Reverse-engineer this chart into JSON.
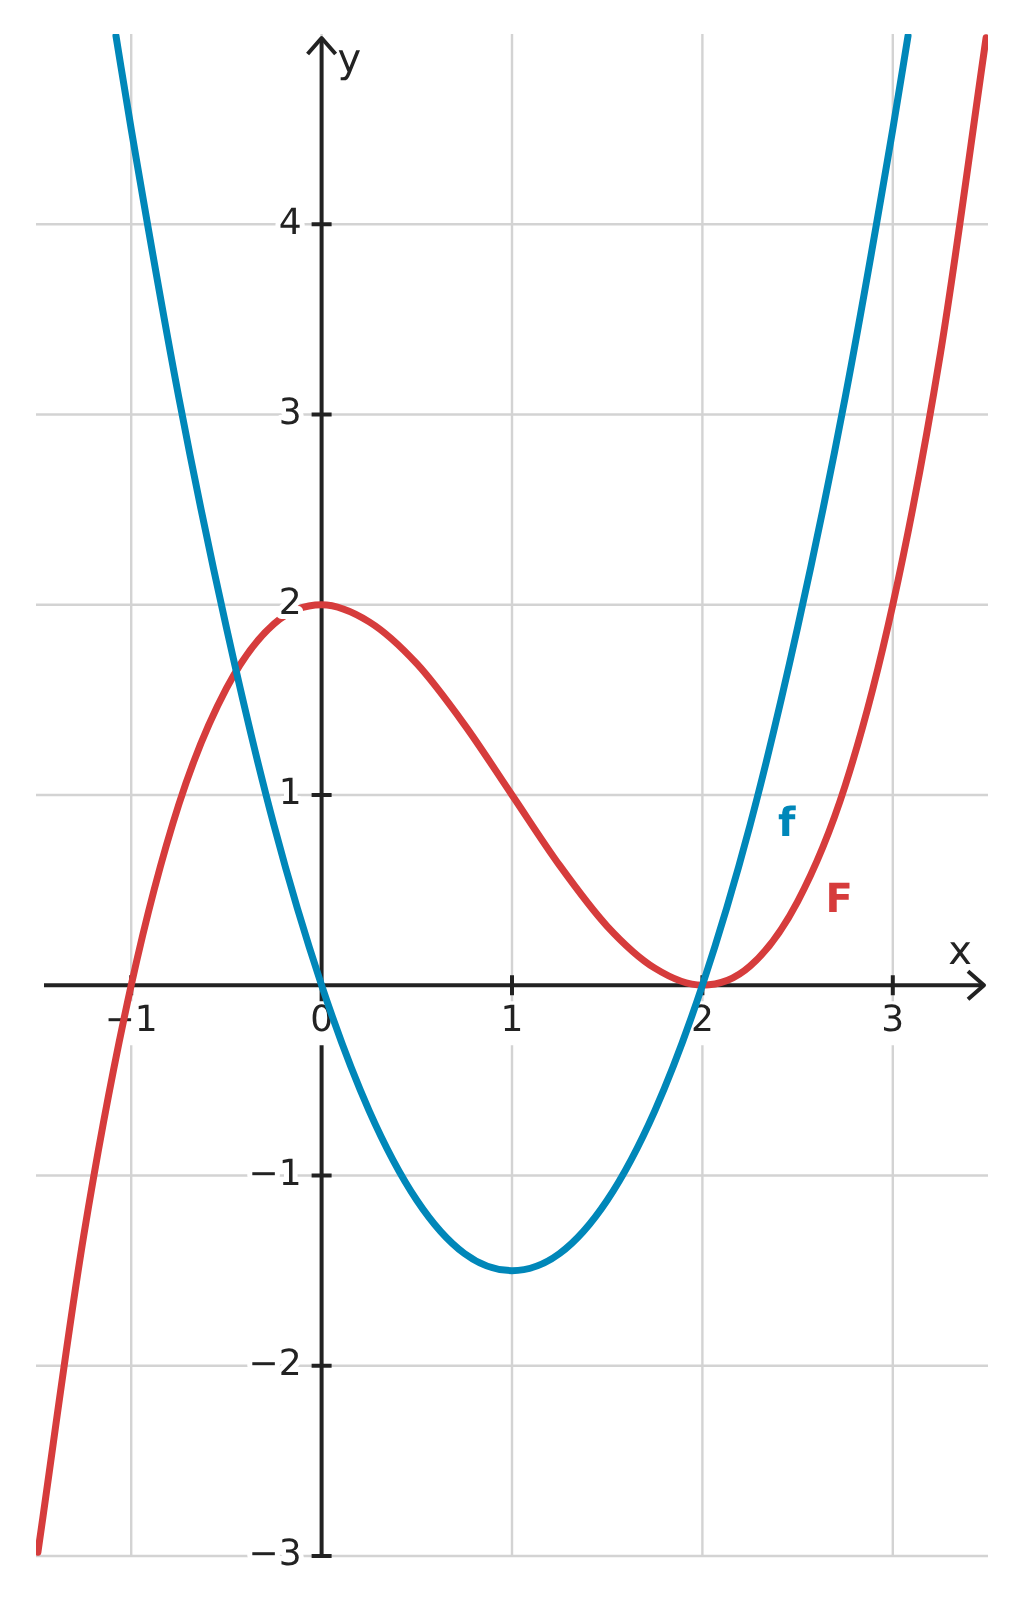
{
  "chart_data": {
    "type": "line",
    "xlabel": "x",
    "ylabel": "y",
    "xlim": [
      -1.5,
      3.5
    ],
    "ylim": [
      -3,
      5
    ],
    "xticks": [
      -1,
      0,
      1,
      2,
      3
    ],
    "yticks": [
      -3,
      -2,
      -1,
      1,
      2,
      3,
      4
    ],
    "grid": true,
    "marker": "none",
    "line_style": "solid",
    "series": [
      {
        "name": "f",
        "color": "#0087b9",
        "x": [
          -1.08,
          -1,
          -0.75,
          -0.5,
          -0.25,
          0,
          0.25,
          0.5,
          0.75,
          1,
          1.25,
          1.5,
          1.75,
          2,
          2.25,
          2.5,
          2.75,
          3,
          3.08
        ],
        "values": [
          4.99,
          4.5,
          3.09,
          1.88,
          0.84,
          0,
          -0.66,
          -1.13,
          -1.41,
          -1.5,
          -1.41,
          -1.13,
          -0.66,
          0,
          0.84,
          1.88,
          3.09,
          4.5,
          4.99
        ]
      },
      {
        "name": "F",
        "color": "#d63c3c",
        "x": [
          -1.49,
          -1.25,
          -1,
          -0.75,
          -0.5,
          -0.25,
          0,
          0.25,
          0.5,
          0.75,
          1,
          1.25,
          1.5,
          1.75,
          2,
          2.25,
          2.5,
          2.75,
          3,
          3.25,
          3.49
        ],
        "values": [
          -2.98,
          -1.32,
          0,
          0.95,
          1.56,
          1.9,
          2,
          1.91,
          1.69,
          1.37,
          1,
          0.63,
          0.31,
          0.09,
          0,
          0.1,
          0.44,
          1.05,
          2,
          3.32,
          4.98
        ]
      }
    ]
  }
}
